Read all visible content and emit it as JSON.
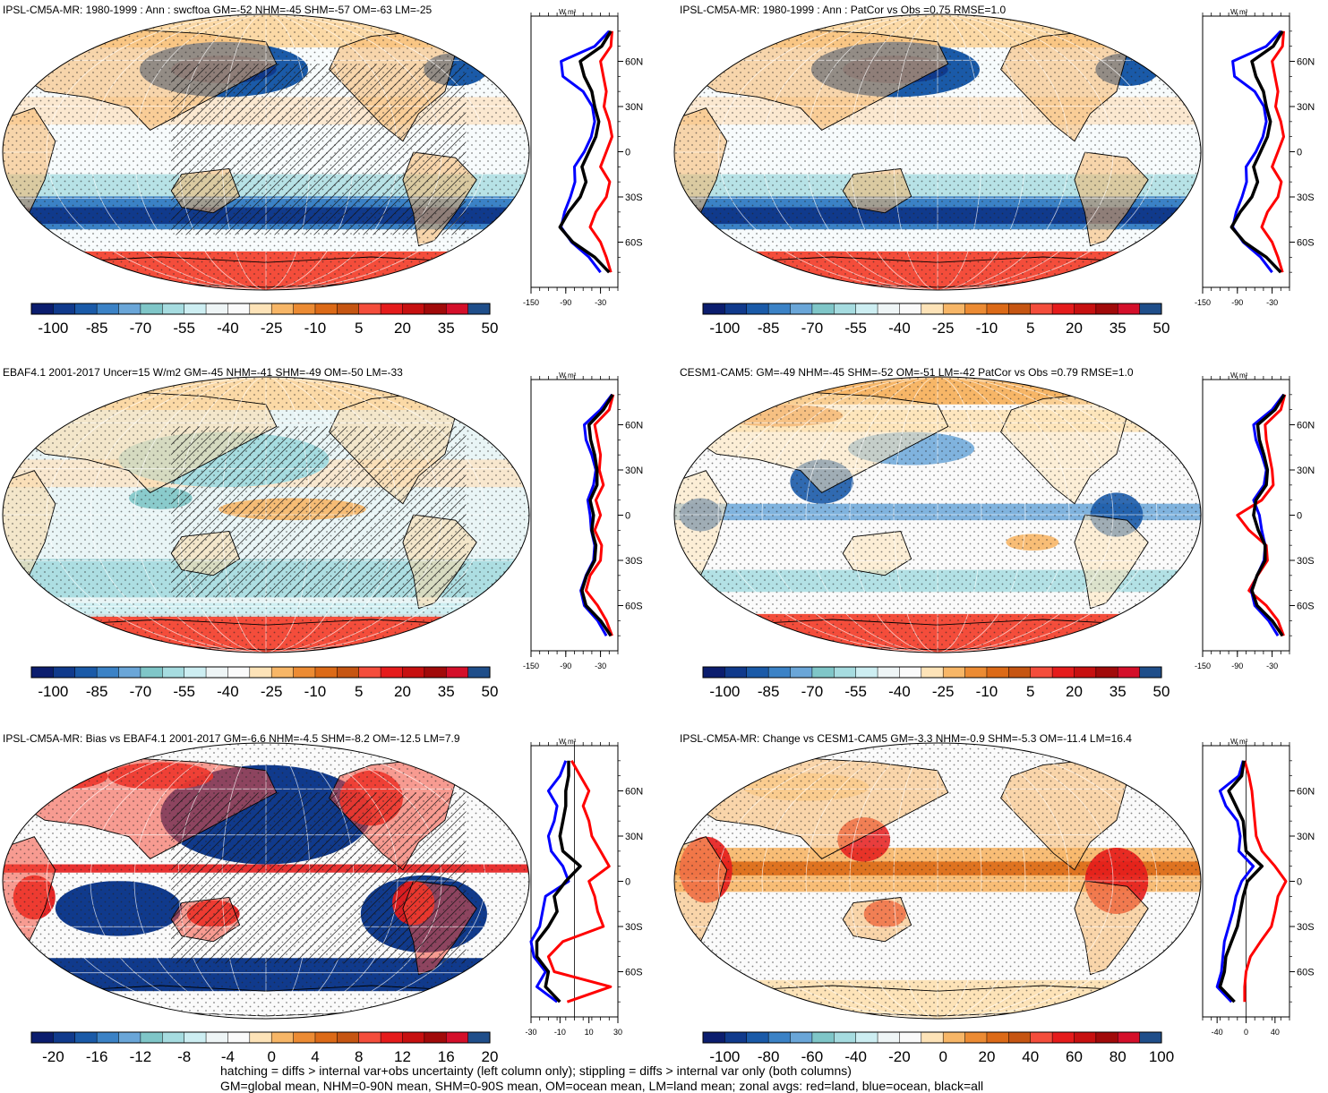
{
  "figure": {
    "footnote_lines": [
      "hatching = diffs > internal var+obs uncertainty (left column only); stippling = diffs > internal var only (both columns)",
      "GM=global mean, NHM=0-90N mean, SHM=0-90S mean, OM=ocean mean, LM=land mean; zonal avgs: red=land, blue=ocean, black=all"
    ],
    "legend_colors": {
      "land": "#ff0000",
      "ocean": "#0000ff",
      "all": "#000000"
    }
  },
  "chart_data": [
    {
      "type": "heatmap",
      "title": "IPSL-CM5A-MR: 1980-1999 : Ann : swcftoa GM=-52 NHM=-45 SHM=-57 OM=-63 LM=-25",
      "map_style": "model",
      "hatched": true,
      "colorbar": {
        "labels": [
          "-100",
          "-85",
          "-70",
          "-55",
          "-40",
          "-25",
          "-10",
          "5",
          "20",
          "35",
          "50"
        ],
        "levels": 21
      },
      "zonal": {
        "unit": "W m²",
        "xlim": [
          -150,
          0
        ],
        "xticks": [
          -150,
          -90,
          -30
        ],
        "ylabels": [
          "60N",
          "30N",
          "0",
          "30S",
          "60S"
        ],
        "series": [
          {
            "name": "land",
            "color": "#ff0000",
            "lat": [
              80,
              70,
              60,
              50,
              40,
              30,
              20,
              10,
              0,
              -10,
              -20,
              -30,
              -40,
              -50,
              -60,
              -70,
              -80
            ],
            "values": [
              -10,
              -12,
              -30,
              -25,
              -20,
              -24,
              -15,
              -10,
              -20,
              -30,
              -14,
              -20,
              -38,
              -48,
              -30,
              -20,
              -12
            ]
          },
          {
            "name": "ocean",
            "color": "#0000ff",
            "lat": [
              80,
              70,
              60,
              50,
              40,
              30,
              20,
              10,
              0,
              -10,
              -20,
              -30,
              -40,
              -50,
              -60,
              -70,
              -80
            ],
            "values": [
              -15,
              -40,
              -98,
              -95,
              -60,
              -44,
              -40,
              -46,
              -58,
              -75,
              -74,
              -82,
              -92,
              -98,
              -80,
              -50,
              -30
            ]
          },
          {
            "name": "all",
            "color": "#000000",
            "lat": [
              80,
              70,
              60,
              50,
              40,
              30,
              20,
              10,
              0,
              -10,
              -20,
              -30,
              -40,
              -50,
              -60,
              -70,
              -80
            ],
            "values": [
              -12,
              -28,
              -65,
              -58,
              -45,
              -40,
              -33,
              -38,
              -50,
              -62,
              -55,
              -65,
              -85,
              -100,
              -78,
              -40,
              -15
            ]
          }
        ]
      }
    },
    {
      "type": "heatmap",
      "title": "IPSL-CM5A-MR: 1980-1999 : Ann : PatCor vs Obs =0.75 RMSE=1.0",
      "map_style": "model",
      "hatched": false,
      "colorbar": {
        "labels": [
          "-100",
          "-85",
          "-70",
          "-55",
          "-40",
          "-25",
          "-10",
          "5",
          "20",
          "35",
          "50"
        ],
        "levels": 21
      },
      "zonal": {
        "unit": "W m²",
        "xlim": [
          -150,
          0
        ],
        "xticks": [
          -150,
          -90,
          -30
        ],
        "ylabels": [
          "60N",
          "30N",
          "0",
          "30S",
          "60S"
        ],
        "series": [
          {
            "name": "land",
            "color": "#ff0000",
            "lat": [
              80,
              70,
              60,
              50,
              40,
              30,
              20,
              10,
              0,
              -10,
              -20,
              -30,
              -40,
              -50,
              -60,
              -70,
              -80
            ],
            "values": [
              -10,
              -12,
              -30,
              -25,
              -20,
              -24,
              -15,
              -10,
              -20,
              -30,
              -14,
              -20,
              -38,
              -48,
              -30,
              -20,
              -12
            ]
          },
          {
            "name": "ocean",
            "color": "#0000ff",
            "lat": [
              80,
              70,
              60,
              50,
              40,
              30,
              20,
              10,
              0,
              -10,
              -20,
              -30,
              -40,
              -50,
              -60,
              -70,
              -80
            ],
            "values": [
              -15,
              -40,
              -98,
              -95,
              -60,
              -44,
              -40,
              -46,
              -58,
              -75,
              -74,
              -82,
              -92,
              -98,
              -80,
              -50,
              -30
            ]
          },
          {
            "name": "all",
            "color": "#000000",
            "lat": [
              80,
              70,
              60,
              50,
              40,
              30,
              20,
              10,
              0,
              -10,
              -20,
              -30,
              -40,
              -50,
              -60,
              -70,
              -80
            ],
            "values": [
              -12,
              -28,
              -65,
              -58,
              -45,
              -40,
              -33,
              -38,
              -50,
              -62,
              -55,
              -65,
              -85,
              -100,
              -78,
              -40,
              -15
            ]
          }
        ]
      }
    },
    {
      "type": "heatmap",
      "title": "EBAF4.1 2001-2017 Uncer=15 W/m2 GM=-45 NHM=-41 SHM=-49 OM=-50 LM=-33",
      "map_style": "obs",
      "hatched": true,
      "colorbar": {
        "labels": [
          "-100",
          "-85",
          "-70",
          "-55",
          "-40",
          "-25",
          "-10",
          "5",
          "20",
          "35",
          "50"
        ],
        "levels": 21
      },
      "zonal": {
        "unit": "W m²",
        "xlim": [
          -150,
          0
        ],
        "xticks": [
          -150,
          -90,
          -30
        ],
        "ylabels": [
          "60N",
          "30N",
          "0",
          "30S",
          "60S"
        ],
        "series": [
          {
            "name": "land",
            "color": "#ff0000",
            "lat": [
              80,
              70,
              60,
              50,
              40,
              30,
              20,
              10,
              0,
              -10,
              -20,
              -30,
              -40,
              -50,
              -60,
              -70,
              -80
            ],
            "values": [
              -8,
              -15,
              -40,
              -35,
              -30,
              -32,
              -25,
              -38,
              -30,
              -40,
              -28,
              -30,
              -48,
              -55,
              -35,
              -20,
              -10
            ]
          },
          {
            "name": "ocean",
            "color": "#0000ff",
            "lat": [
              80,
              70,
              60,
              50,
              40,
              30,
              20,
              10,
              0,
              -10,
              -20,
              -30,
              -40,
              -50,
              -60,
              -70,
              -80
            ],
            "values": [
              -10,
              -30,
              -58,
              -55,
              -45,
              -38,
              -42,
              -52,
              -48,
              -46,
              -40,
              -42,
              -55,
              -64,
              -58,
              -35,
              -20
            ]
          },
          {
            "name": "all",
            "color": "#000000",
            "lat": [
              80,
              70,
              60,
              50,
              40,
              30,
              20,
              10,
              0,
              -10,
              -20,
              -30,
              -40,
              -50,
              -60,
              -70,
              -80
            ],
            "values": [
              -9,
              -25,
              -50,
              -47,
              -40,
              -36,
              -36,
              -48,
              -42,
              -45,
              -38,
              -40,
              -54,
              -62,
              -55,
              -30,
              -12
            ]
          }
        ]
      }
    },
    {
      "type": "heatmap",
      "title": "CESM1-CAM5: GM=-49 NHM=-45 SHM=-52 OM=-51 LM=-42 PatCor vs Obs =0.79 RMSE=1.0",
      "map_style": "cesm",
      "hatched": false,
      "colorbar": {
        "labels": [
          "-100",
          "-85",
          "-70",
          "-55",
          "-40",
          "-25",
          "-10",
          "5",
          "20",
          "35",
          "50"
        ],
        "levels": 21
      },
      "zonal": {
        "unit": "W m²",
        "xlim": [
          -150,
          0
        ],
        "xticks": [
          -150,
          -90,
          -30
        ],
        "ylabels": [
          "60N",
          "30N",
          "0",
          "30S",
          "60S"
        ],
        "series": [
          {
            "name": "land",
            "color": "#ff0000",
            "lat": [
              80,
              70,
              60,
              50,
              40,
              30,
              20,
              10,
              0,
              -10,
              -20,
              -30,
              -40,
              -50,
              -60,
              -70,
              -80
            ],
            "values": [
              -8,
              -15,
              -42,
              -40,
              -35,
              -30,
              -28,
              -48,
              -90,
              -70,
              -40,
              -38,
              -55,
              -70,
              -40,
              -20,
              -10
            ]
          },
          {
            "name": "ocean",
            "color": "#0000ff",
            "lat": [
              80,
              70,
              60,
              50,
              40,
              30,
              20,
              10,
              0,
              -10,
              -20,
              -30,
              -40,
              -50,
              -60,
              -70,
              -80
            ],
            "values": [
              -10,
              -30,
              -62,
              -58,
              -48,
              -40,
              -44,
              -62,
              -52,
              -48,
              -42,
              -44,
              -56,
              -66,
              -60,
              -36,
              -20
            ]
          },
          {
            "name": "all",
            "color": "#000000",
            "lat": [
              80,
              70,
              60,
              50,
              40,
              30,
              20,
              10,
              0,
              -10,
              -20,
              -30,
              -40,
              -50,
              -60,
              -70,
              -80
            ],
            "values": [
              -9,
              -25,
              -55,
              -52,
              -44,
              -38,
              -40,
              -58,
              -62,
              -54,
              -42,
              -42,
              -56,
              -65,
              -56,
              -30,
              -12
            ]
          }
        ]
      }
    },
    {
      "type": "heatmap",
      "title": "IPSL-CM5A-MR: Bias vs EBAF4.1 2001-2017 GM=-6.6 NHM=-4.5 SHM=-8.2 OM=-12.5 LM=7.9",
      "map_style": "bias",
      "hatched": true,
      "colorbar": {
        "labels": [
          "-20",
          "-16",
          "-12",
          "-8",
          "-4",
          "0",
          "4",
          "8",
          "12",
          "16",
          "20"
        ],
        "levels": 21
      },
      "zonal": {
        "unit": "W m²",
        "xlim": [
          -30,
          30
        ],
        "xticks": [
          -30,
          -10,
          10,
          30
        ],
        "xzero": 0,
        "ylabels": [
          "60N",
          "30N",
          "0",
          "30S",
          "60S"
        ],
        "series": [
          {
            "name": "land",
            "color": "#ff0000",
            "lat": [
              80,
              70,
              60,
              50,
              40,
              30,
              20,
              10,
              0,
              -10,
              -20,
              -30,
              -40,
              -50,
              -60,
              -70,
              -80
            ],
            "values": [
              -2,
              4,
              10,
              6,
              10,
              12,
              18,
              24,
              10,
              14,
              16,
              20,
              -8,
              -18,
              -14,
              25,
              -5
            ]
          },
          {
            "name": "ocean",
            "color": "#0000ff",
            "lat": [
              80,
              70,
              60,
              50,
              40,
              30,
              20,
              10,
              0,
              -10,
              -20,
              -30,
              -40,
              -50,
              -60,
              -70,
              -80
            ],
            "values": [
              -6,
              -10,
              -18,
              -12,
              -14,
              -18,
              -16,
              -8,
              -4,
              -20,
              -22,
              -24,
              -30,
              -28,
              -20,
              -26,
              -12
            ]
          },
          {
            "name": "all",
            "color": "#000000",
            "lat": [
              80,
              70,
              60,
              50,
              40,
              30,
              20,
              10,
              0,
              -10,
              -20,
              -30,
              -40,
              -50,
              -60,
              -70,
              -80
            ],
            "values": [
              -4,
              -4,
              -6,
              -6,
              -8,
              -10,
              -8,
              4,
              -6,
              -14,
              -12,
              -18,
              -26,
              -26,
              -18,
              -20,
              -10
            ]
          }
        ]
      }
    },
    {
      "type": "heatmap",
      "title": "IPSL-CM5A-MR: Change vs CESM1-CAM5 GM=-3.3 NHM=-0.9 SHM=-5.3 OM=-11.4 LM=16.4",
      "map_style": "change",
      "hatched": false,
      "colorbar": {
        "labels": [
          "-100",
          "-80",
          "-60",
          "-40",
          "-20",
          "0",
          "20",
          "40",
          "60",
          "80",
          "100"
        ],
        "levels": 21
      },
      "zonal": {
        "unit": "W m²",
        "xlim": [
          -60,
          60
        ],
        "xticks": [
          -40,
          0,
          40
        ],
        "xzero": 0,
        "ylabels": [
          "60N",
          "30N",
          "0",
          "30S",
          "60S"
        ],
        "series": [
          {
            "name": "land",
            "color": "#ff0000",
            "lat": [
              80,
              70,
              60,
              50,
              40,
              30,
              20,
              10,
              0,
              -10,
              -20,
              -30,
              -40,
              -50,
              -60,
              -70,
              -80
            ],
            "values": [
              -2,
              4,
              8,
              10,
              12,
              14,
              22,
              40,
              55,
              44,
              40,
              35,
              20,
              6,
              0,
              -2,
              -2
            ]
          },
          {
            "name": "ocean",
            "color": "#0000ff",
            "lat": [
              80,
              70,
              60,
              50,
              40,
              30,
              20,
              10,
              0,
              -10,
              -20,
              -30,
              -40,
              -50,
              -60,
              -70,
              -80
            ],
            "values": [
              -4,
              -10,
              -36,
              -28,
              -12,
              -8,
              -10,
              10,
              -6,
              -14,
              -18,
              -24,
              -30,
              -32,
              -34,
              -40,
              -20
            ]
          },
          {
            "name": "all",
            "color": "#000000",
            "lat": [
              80,
              70,
              60,
              50,
              40,
              30,
              20,
              10,
              0,
              -10,
              -20,
              -30,
              -40,
              -50,
              -60,
              -70,
              -80
            ],
            "values": [
              -3,
              -6,
              -24,
              -14,
              -4,
              -2,
              0,
              22,
              2,
              -4,
              -8,
              -12,
              -20,
              -28,
              -30,
              -36,
              -16
            ]
          }
        ]
      }
    }
  ]
}
